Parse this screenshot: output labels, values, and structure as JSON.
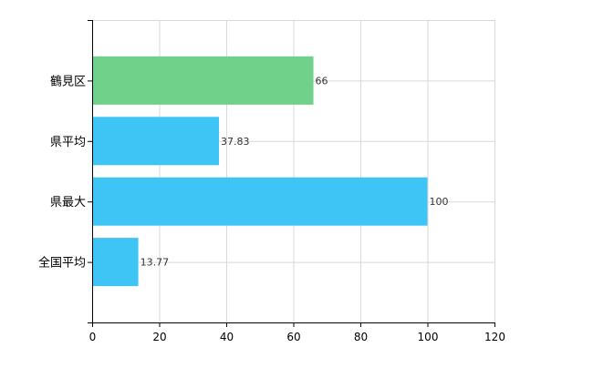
{
  "chart_data": {
    "type": "bar",
    "orientation": "horizontal",
    "categories": [
      "鶴見区",
      "県平均",
      "県最大",
      "全国平均"
    ],
    "values": [
      66,
      37.83,
      100,
      13.77
    ],
    "value_labels": [
      "66",
      "37.83",
      "100",
      "13.77"
    ],
    "bar_colors": [
      "#6fd18a",
      "#3ec4f5",
      "#3ec4f5",
      "#3ec4f5"
    ],
    "xlim": [
      0,
      120
    ],
    "x_ticks": [
      0,
      20,
      40,
      60,
      80,
      100,
      120
    ],
    "x_tick_labels": [
      "0",
      "20",
      "40",
      "60",
      "80",
      "100",
      "120"
    ],
    "grid": true,
    "title": "",
    "xlabel": "",
    "ylabel": ""
  }
}
